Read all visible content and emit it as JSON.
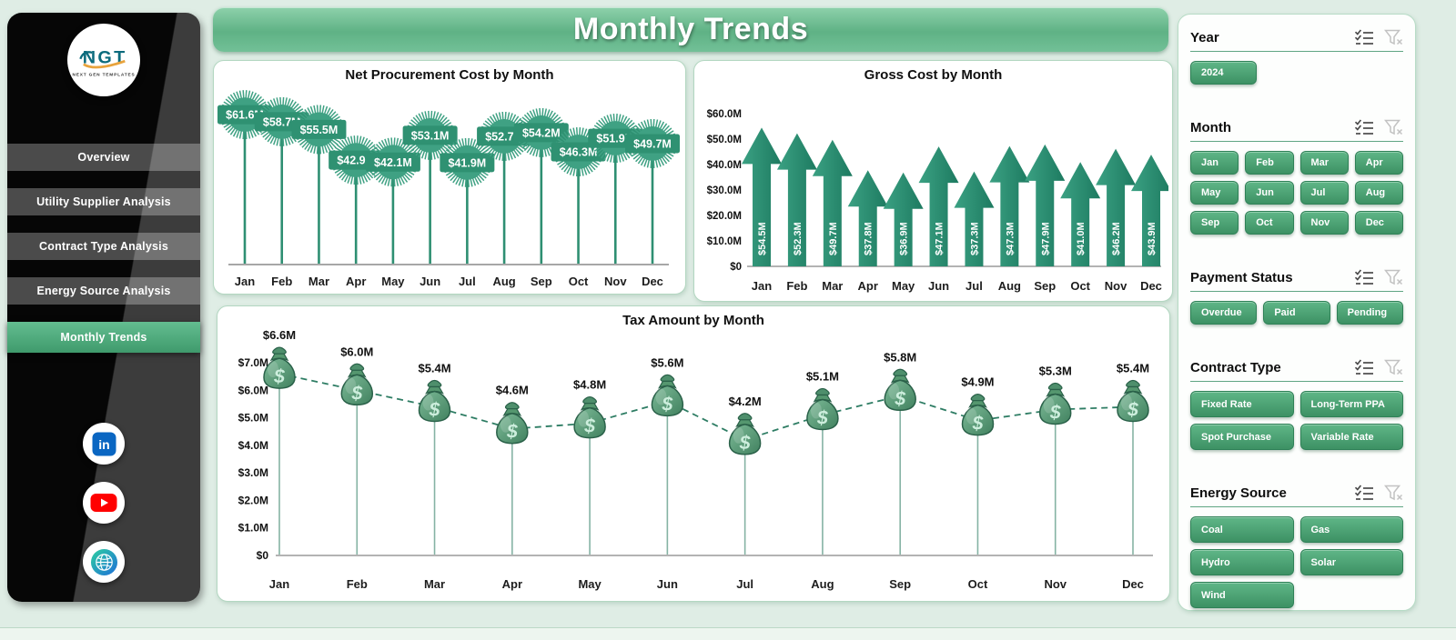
{
  "header": {
    "title": "Monthly Trends"
  },
  "sidebar": {
    "logo": {
      "text": "NGT",
      "subtext": "NEXT GEN TEMPLATES"
    },
    "items": [
      {
        "label": "Overview",
        "active": false
      },
      {
        "label": "Utility Supplier Analysis",
        "active": false
      },
      {
        "label": "Contract Type Analysis",
        "active": false
      },
      {
        "label": "Energy Source Analysis",
        "active": false
      },
      {
        "label": "Monthly Trends",
        "active": true
      }
    ],
    "social": [
      {
        "name": "linkedin"
      },
      {
        "name": "youtube"
      },
      {
        "name": "website"
      }
    ]
  },
  "slicers": [
    {
      "title": "Year",
      "cols": 3,
      "options": [
        "2024"
      ],
      "icons": [
        "multiselect",
        "clear-filter"
      ]
    },
    {
      "title": "Month",
      "cols": 4,
      "options": [
        "Jan",
        "Feb",
        "Mar",
        "Apr",
        "May",
        "Jun",
        "Jul",
        "Aug",
        "Sep",
        "Oct",
        "Nov",
        "Dec"
      ],
      "icons": [
        "multiselect",
        "clear-filter"
      ]
    },
    {
      "title": "Payment Status",
      "cols": 3,
      "options": [
        "Overdue",
        "Paid",
        "Pending"
      ],
      "icons": [
        "multiselect",
        "clear-filter"
      ]
    },
    {
      "title": "Contract Type",
      "cols": 2,
      "options": [
        "Fixed Rate",
        "Long-Term PPA",
        "Spot Purchase",
        "Variable Rate"
      ],
      "icons": [
        "multiselect",
        "clear-filter"
      ]
    },
    {
      "title": "Energy Source",
      "cols": 2,
      "options": [
        "Coal",
        "Gas",
        "Hydro",
        "Solar",
        "Wind"
      ],
      "icons": [
        "multiselect",
        "clear-filter"
      ]
    }
  ],
  "chart_data": [
    {
      "type": "lollipop",
      "marker": "starburst",
      "title": "Net Procurement Cost by Month",
      "categories": [
        "Jan",
        "Feb",
        "Mar",
        "Apr",
        "May",
        "Jun",
        "Jul",
        "Aug",
        "Sep",
        "Oct",
        "Nov",
        "Dec"
      ],
      "values": [
        61.6,
        58.7,
        55.5,
        42.9,
        42.1,
        53.1,
        41.9,
        52.7,
        54.2,
        46.3,
        51.9,
        49.7
      ],
      "labels": [
        "$61.6M",
        "$58.7M",
        "$55.5M",
        "$42.9M",
        "$42.1M",
        "$53.1M",
        "$41.9M",
        "$52.7M",
        "$54.2M",
        "$46.3M",
        "$51.9M",
        "$49.7M"
      ],
      "xlabel": "",
      "ylabel": "",
      "ylim": [
        0,
        65
      ],
      "grid": false,
      "legend": false
    },
    {
      "type": "bar",
      "bar_style": "arrow",
      "title": "Gross Cost by Month",
      "categories": [
        "Jan",
        "Feb",
        "Mar",
        "Apr",
        "May",
        "Jun",
        "Jul",
        "Aug",
        "Sep",
        "Oct",
        "Nov",
        "Dec"
      ],
      "values": [
        54.5,
        52.3,
        49.7,
        37.8,
        36.9,
        47.1,
        37.3,
        47.3,
        47.9,
        41.0,
        46.2,
        43.9
      ],
      "labels": [
        "$54.5M",
        "$52.3M",
        "$49.7M",
        "$37.8M",
        "$36.9M",
        "$47.1M",
        "$37.3M",
        "$47.3M",
        "$47.9M",
        "$41.0M",
        "$46.2M",
        "$43.9M"
      ],
      "yticks": {
        "values": [
          0,
          10,
          20,
          30,
          40,
          50,
          60
        ],
        "labels": [
          "$0",
          "$10.0M",
          "$20.0M",
          "$30.0M",
          "$40.0M",
          "$50.0M",
          "$60.0M"
        ]
      },
      "xlabel": "",
      "ylabel": "",
      "ylim": [
        0,
        60
      ],
      "grid": false,
      "legend": false
    },
    {
      "type": "line",
      "line_style": "dashed",
      "marker": "money-bag",
      "title": "Tax Amount by Month",
      "categories": [
        "Jan",
        "Feb",
        "Mar",
        "Apr",
        "May",
        "Jun",
        "Jul",
        "Aug",
        "Sep",
        "Oct",
        "Nov",
        "Dec"
      ],
      "values": [
        6.6,
        6.0,
        5.4,
        4.6,
        4.8,
        5.6,
        4.2,
        5.1,
        5.8,
        4.9,
        5.3,
        5.4
      ],
      "labels": [
        "$6.6M",
        "$6.0M",
        "$5.4M",
        "$4.6M",
        "$4.8M",
        "$5.6M",
        "$4.2M",
        "$5.1M",
        "$5.8M",
        "$4.9M",
        "$5.3M",
        "$5.4M"
      ],
      "yticks": {
        "values": [
          0,
          1,
          2,
          3,
          4,
          5,
          6,
          7
        ],
        "labels": [
          "$0",
          "$1.0M",
          "$2.0M",
          "$3.0M",
          "$4.0M",
          "$5.0M",
          "$6.0M",
          "$7.0M"
        ]
      },
      "xlabel": "",
      "ylabel": "",
      "ylim": [
        0,
        7.5
      ],
      "grid": false,
      "legend": false
    }
  ],
  "colors": {
    "page_bg": "#DFEDE5",
    "panel_border": "#B3D7C1",
    "teal": "#3FA183",
    "teal_dark": "#2E8F72",
    "value_badge": "#2F9172",
    "arrow_gradient": [
      "#3BA183",
      "#1D7A60"
    ],
    "header_gradient": [
      "#8ED1AB",
      "#5FB285"
    ],
    "button_gradient": [
      "#5FB687",
      "#3D9164"
    ],
    "sidebar_active_gradient": [
      "#63BD90",
      "#3F9A6C"
    ],
    "dashed_line": "#2E7D64",
    "money_bag_gradient": [
      "#7CBA97",
      "#41815F"
    ],
    "linkedin_blue": "#0A66C2",
    "youtube_red": "#FF0000",
    "logo_teal": "#0C6B7D",
    "logo_orange": "#E8A33D"
  }
}
